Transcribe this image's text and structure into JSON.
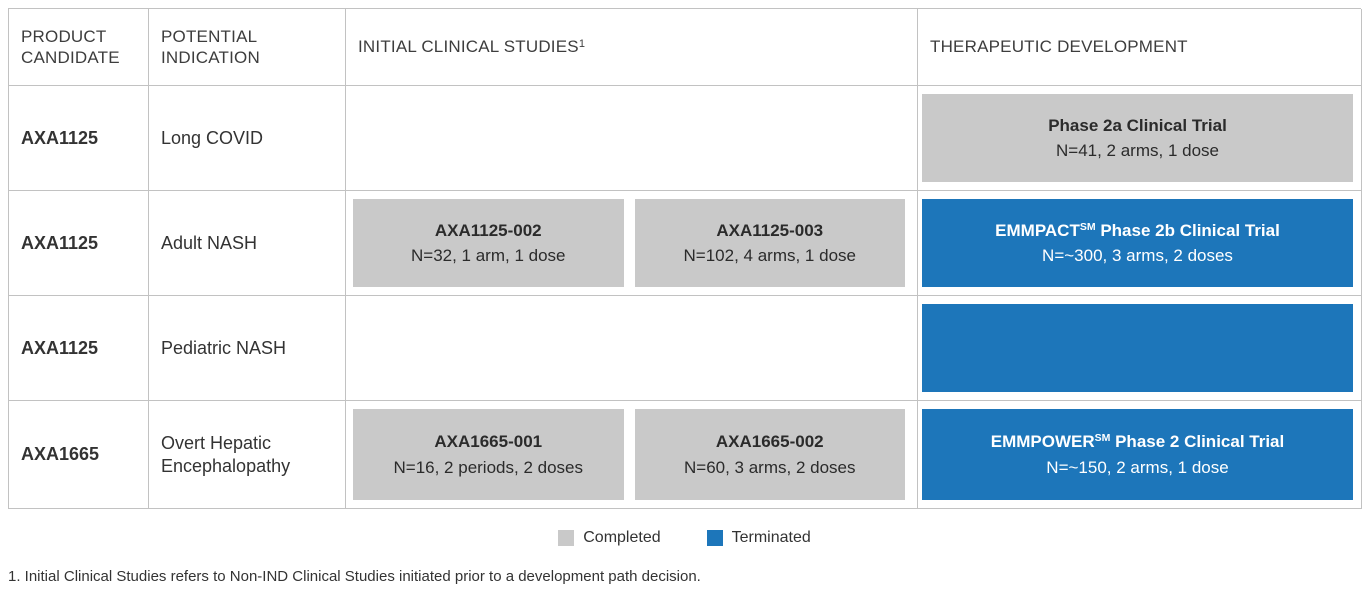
{
  "colors": {
    "completed": "#c9c9c9",
    "terminated": "#1d76ba",
    "border": "#c2c2c2",
    "header_text": "#3d3d3d",
    "body_text": "#333333",
    "box_text": "#2b2b2b",
    "white_text": "#ffffff"
  },
  "chart_data": {
    "type": "table",
    "columns": {
      "col1": "PRODUCT CANDIDATE",
      "col2": "POTENTIAL INDICATION",
      "col3": "INITIAL CLINICAL STUDIES",
      "col3_sup": "1",
      "col4": "THERAPEUTIC DEVELOPMENT"
    },
    "rows": [
      {
        "product": "AXA1125",
        "indication": "Long COVID",
        "studies": [],
        "development": {
          "status": "completed",
          "title": "Phase 2a Clinical Trial",
          "title_sup": "",
          "title_rest": "",
          "subtitle": "N=41, 2 arms, 1 dose"
        }
      },
      {
        "product": "AXA1125",
        "indication": "Adult NASH",
        "studies": [
          {
            "name": "AXA1125-002",
            "details": "N=32, 1 arm, 1 dose"
          },
          {
            "name": "AXA1125-003",
            "details": "N=102, 4 arms, 1 dose"
          }
        ],
        "development": {
          "status": "terminated",
          "title": "EMMPACT",
          "title_sup": "SM",
          "title_rest": " Phase 2b Clinical Trial",
          "subtitle": "N=~300, 3 arms, 2 doses"
        }
      },
      {
        "product": "AXA1125",
        "indication": "Pediatric NASH",
        "studies": [],
        "development": {
          "status": "terminated",
          "title": "",
          "title_sup": "",
          "title_rest": "",
          "subtitle": ""
        }
      },
      {
        "product": "AXA1665",
        "indication": "Overt Hepatic Encephalopathy",
        "studies": [
          {
            "name": "AXA1665-001",
            "details": "N=16, 2 periods, 2 doses"
          },
          {
            "name": "AXA1665-002",
            "details": "N=60, 3 arms, 2 doses"
          }
        ],
        "development": {
          "status": "terminated",
          "title": "EMMPOWER",
          "title_sup": "SM",
          "title_rest": " Phase 2 Clinical Trial",
          "subtitle": "N=~150, 2 arms, 1 dose"
        }
      }
    ],
    "legend": [
      {
        "label": "Completed",
        "color": "#c9c9c9"
      },
      {
        "label": "Terminated",
        "color": "#1d76ba"
      }
    ],
    "footnote": "1. Initial Clinical Studies refers to Non-IND Clinical Studies initiated prior to a development path decision."
  }
}
